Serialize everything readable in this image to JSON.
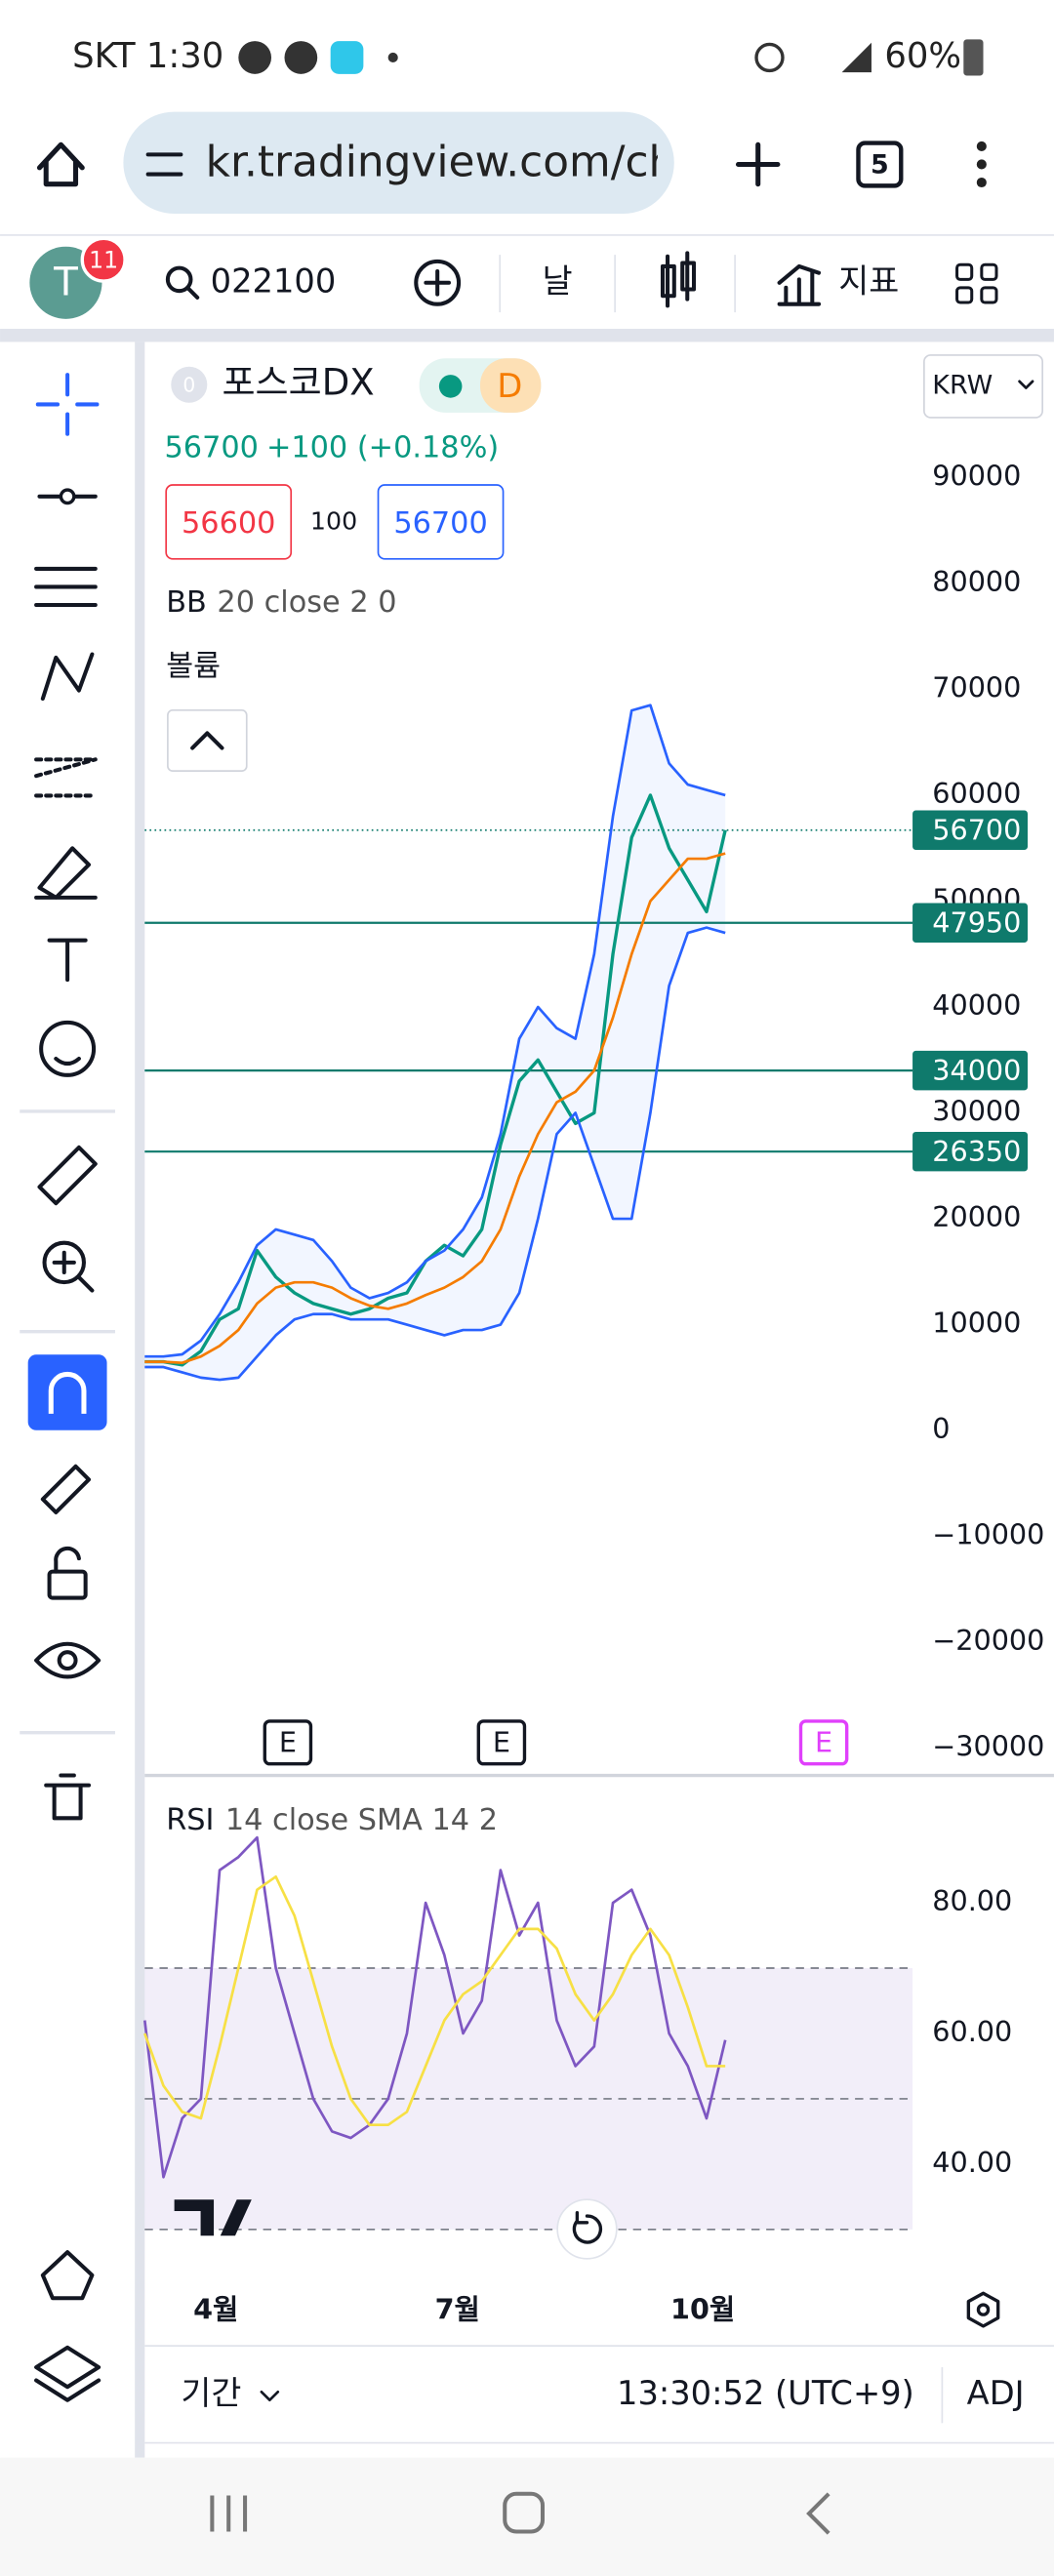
{
  "status_bar": {
    "carrier_time": "SKT 1:30",
    "battery": "60%"
  },
  "browser": {
    "url": "kr.tradingview.com/cha",
    "tabs": "5"
  },
  "toolbar": {
    "avatar": "T",
    "notifications": "11",
    "symbol": "022100",
    "interval": "날",
    "indicators": "지표"
  },
  "legend": {
    "name": "포스코DX",
    "badge": "0",
    "flag": "D",
    "last": "56700",
    "change": "+100 (+0.18%)",
    "sell": "56600",
    "spread": "100",
    "buy": "56700",
    "bb_name": "BB",
    "bb_params": "20 close 2 0",
    "volume_name": "볼륨",
    "currency": "KRW"
  },
  "events": [
    "E",
    "E",
    "E"
  ],
  "rsi_legend": {
    "name": "RSI",
    "params": "14 close SMA 14 2"
  },
  "footer": {
    "range": "기간",
    "clock": "13:30:52 (UTC+9)",
    "adj": "ADJ"
  },
  "chart_data": [
    {
      "type": "line",
      "xlim": [
        0,
        41
      ],
      "xticks": [
        {
          "value": 3.8,
          "label": "4월"
        },
        {
          "value": 16.7,
          "label": "7월"
        },
        {
          "value": 29.8,
          "label": "10월"
        }
      ],
      "ylim": [
        -32250,
        102800
      ],
      "yticks": [
        90000,
        80000,
        70000,
        60000,
        50000,
        40000,
        30000,
        20000,
        10000,
        0,
        {
          "value": -10000,
          "label": "−10000"
        },
        {
          "value": -20000,
          "label": "−20000"
        },
        {
          "value": -30000,
          "label": "−30000"
        }
      ],
      "last_price": 56700,
      "price_lines": [
        47950,
        34000,
        26350
      ],
      "price_line_color": "#0f7a6c",
      "series": [
        {
          "name": "close",
          "color": "#089981",
          "values": [
            6500,
            6500,
            6200,
            7500,
            10500,
            11500,
            17000,
            14500,
            13000,
            12000,
            11500,
            11000,
            11500,
            12500,
            13000,
            16000,
            17500,
            16500,
            19000,
            27000,
            33000,
            35000,
            32000,
            29000,
            30000,
            45000,
            56000,
            60000,
            55000,
            52000,
            49000,
            56700
          ]
        },
        {
          "name": "upper",
          "color": "#2962ff",
          "values": [
            7000,
            7000,
            7200,
            8500,
            11000,
            14000,
            17500,
            19000,
            18500,
            18000,
            16000,
            13500,
            12500,
            13000,
            14000,
            16000,
            17000,
            19000,
            22000,
            28000,
            37000,
            40000,
            38000,
            37000,
            45000,
            58000,
            68000,
            68500,
            63000,
            61000,
            60500,
            60000
          ]
        },
        {
          "name": "basis",
          "color": "#f57c00",
          "values": [
            6500,
            6500,
            6400,
            7000,
            8000,
            9500,
            12000,
            13500,
            14000,
            14000,
            13500,
            12500,
            11800,
            11500,
            12000,
            12800,
            13500,
            14500,
            16000,
            19000,
            24000,
            28000,
            31000,
            32000,
            34000,
            39000,
            45000,
            50000,
            52000,
            54000,
            54000,
            54500
          ]
        },
        {
          "name": "lower",
          "color": "#2962ff",
          "values": [
            6000,
            6000,
            5500,
            5000,
            4800,
            5000,
            7000,
            9000,
            10500,
            11000,
            11000,
            10500,
            10500,
            10500,
            10000,
            9500,
            9000,
            9500,
            9500,
            10000,
            13000,
            20000,
            28000,
            30000,
            25000,
            20000,
            20000,
            30000,
            42000,
            47000,
            47500,
            47000
          ]
        }
      ]
    },
    {
      "type": "line",
      "xlim": [
        0,
        41
      ],
      "ylim": [
        24,
        99
      ],
      "yticks": [
        {
          "value": 80,
          "label": "80.00"
        },
        {
          "value": 60,
          "label": "60.00"
        },
        {
          "value": 40,
          "label": "40.00"
        }
      ],
      "bands": [
        70,
        50,
        30
      ],
      "series": [
        {
          "name": "RSI",
          "color": "#7e57c2",
          "values": [
            62,
            38,
            47,
            50,
            85,
            87,
            90,
            70,
            60,
            50,
            45,
            44,
            46,
            50,
            60,
            80,
            72,
            60,
            65,
            85,
            75,
            80,
            62,
            55,
            58,
            80,
            82,
            75,
            60,
            55,
            47,
            59
          ]
        },
        {
          "name": "SMA",
          "color": "#f7e045",
          "values": [
            60,
            52,
            48,
            47,
            58,
            70,
            82,
            84,
            78,
            68,
            58,
            50,
            46,
            46,
            48,
            55,
            62,
            66,
            68,
            72,
            76,
            76,
            73,
            66,
            62,
            66,
            72,
            76,
            72,
            64,
            55,
            55
          ]
        }
      ]
    }
  ]
}
